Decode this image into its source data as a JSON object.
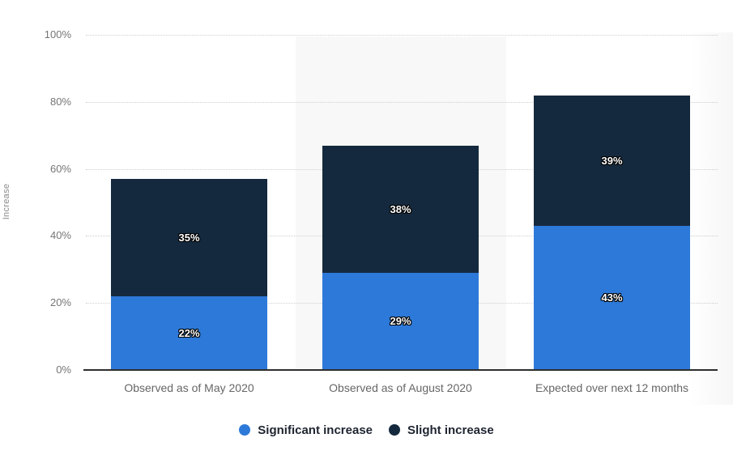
{
  "chart_data": {
    "type": "bar",
    "stacked": true,
    "title": "",
    "xlabel": "",
    "ylabel": "Increase",
    "ylim": [
      0,
      100
    ],
    "y_tick_values": [
      0,
      20,
      40,
      60,
      80,
      100
    ],
    "y_tick_suffix": "%",
    "grid": "horizontal-dotted",
    "legend_position": "bottom",
    "highlighted_category_index": 1,
    "categories": [
      "Observed as of May 2020",
      "Observed as of August 2020",
      "Expected over next 12 months"
    ],
    "series": [
      {
        "name": "Significant increase",
        "color": "#2d79d9",
        "values": [
          22,
          29,
          43
        ]
      },
      {
        "name": "Slight increase",
        "color": "#15293e",
        "values": [
          35,
          38,
          39
        ]
      }
    ],
    "bar_value_labels": [
      [
        "22%",
        "29%",
        "43%"
      ],
      [
        "35%",
        "38%",
        "39%"
      ]
    ],
    "totals": [
      57,
      67,
      82
    ]
  },
  "colors": {
    "significant_increase": "#2d79d9",
    "slight_increase": "#15293e",
    "gridline": "#cfcfcf",
    "axis_line": "#2e2e2e",
    "tick_text": "#757575",
    "category_text": "#666666",
    "legend_text": "#1e2430",
    "highlight_band": "#f8f8f8",
    "background": "#ffffff"
  }
}
